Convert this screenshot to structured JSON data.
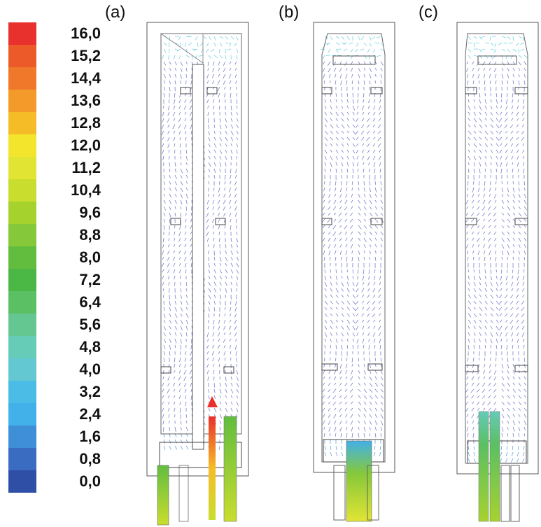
{
  "legend": {
    "labels": [
      "16,0",
      "15,2",
      "14,4",
      "13,6",
      "12,8",
      "12,0",
      "11,2",
      "10,4",
      "9,6",
      "8,8",
      "8,0",
      "7,2",
      "6,4",
      "5,6",
      "4,8",
      "4,0",
      "3,2",
      "2,4",
      "1,6",
      "0,8",
      "0,0"
    ],
    "colors": [
      "#e8302c",
      "#ec5a2a",
      "#f0782a",
      "#f39a2a",
      "#f6bc27",
      "#f3e52c",
      "#e2e433",
      "#c9dd2f",
      "#a6d22e",
      "#85c83a",
      "#62bd3f",
      "#4bb745",
      "#5bbf63",
      "#64c792",
      "#66cbb7",
      "#63c8d1",
      "#4bbce5",
      "#42b1e9",
      "#3f8fd8",
      "#3a6dc2",
      "#2f4fa6"
    ]
  },
  "panels": [
    {
      "label": "(a)"
    },
    {
      "label": "(b)"
    },
    {
      "label": "(c)"
    }
  ]
}
